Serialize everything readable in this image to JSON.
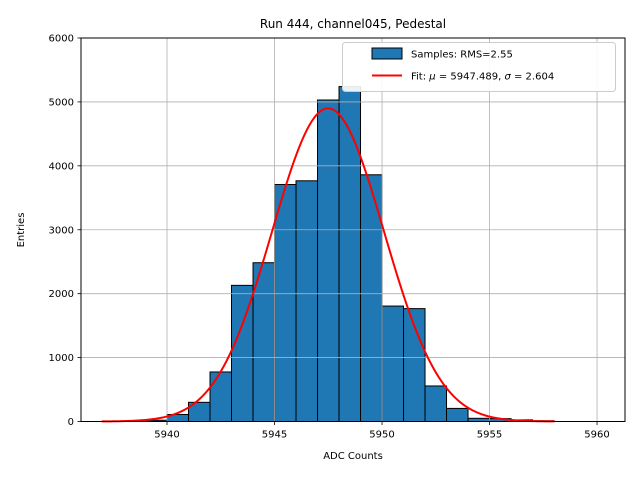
{
  "figure": {
    "background": "#ffffff"
  },
  "chart_data": {
    "type": "bar",
    "subtype": "histogram-with-gaussian-fit",
    "title": "Run 444, channel045, Pedestal",
    "xlabel": "ADC Counts",
    "ylabel": "Entries",
    "xlim": [
      5936.0,
      5961.3
    ],
    "ylim": [
      0,
      6000
    ],
    "xticks": [
      "5940",
      "5945",
      "5950",
      "5955",
      "5960"
    ],
    "xtick_values": [
      5940,
      5945,
      5950,
      5955,
      5960
    ],
    "yticks": [
      "0",
      "1000",
      "2000",
      "3000",
      "4000",
      "5000",
      "6000"
    ],
    "ytick_values": [
      0,
      1000,
      2000,
      3000,
      4000,
      5000,
      6000
    ],
    "grid": true,
    "grid_color": "#b0b0b0",
    "background_color": "#ffffff",
    "spine_color": "#000000",
    "bin_width": 1,
    "series": [
      {
        "name": "Samples: RMS=2.55",
        "type": "histogram",
        "fill_color": "#1f77b4",
        "edge_color": "#000000",
        "bin_left_edges": [
          5939,
          5940,
          5941,
          5942,
          5943,
          5944,
          5945,
          5946,
          5947,
          5948,
          5949,
          5950,
          5951,
          5952,
          5953,
          5954,
          5955,
          5956,
          5957
        ],
        "counts": [
          20,
          110,
          300,
          775,
          2130,
          2484,
          3708,
          3766,
          5030,
          5240,
          3860,
          1806,
          1766,
          556,
          205,
          50,
          45,
          25,
          12
        ]
      },
      {
        "name": "Fit: μ = 5947.489, σ = 2.604",
        "type": "gaussian-line",
        "color": "#ff0000",
        "mu": 5947.489,
        "sigma": 2.604,
        "amplitude": 4900,
        "x_start": 5937.0,
        "x_end": 5958.0
      }
    ],
    "legend": {
      "position": "upper-right",
      "entries": [
        {
          "swatch": "patch",
          "color": "#1f77b4",
          "edge_color": "#000000",
          "label": "Samples: RMS=2.55"
        },
        {
          "swatch": "line",
          "color": "#ff0000",
          "label": "Fit: μ = 5947.489, σ = 2.604"
        }
      ]
    }
  }
}
